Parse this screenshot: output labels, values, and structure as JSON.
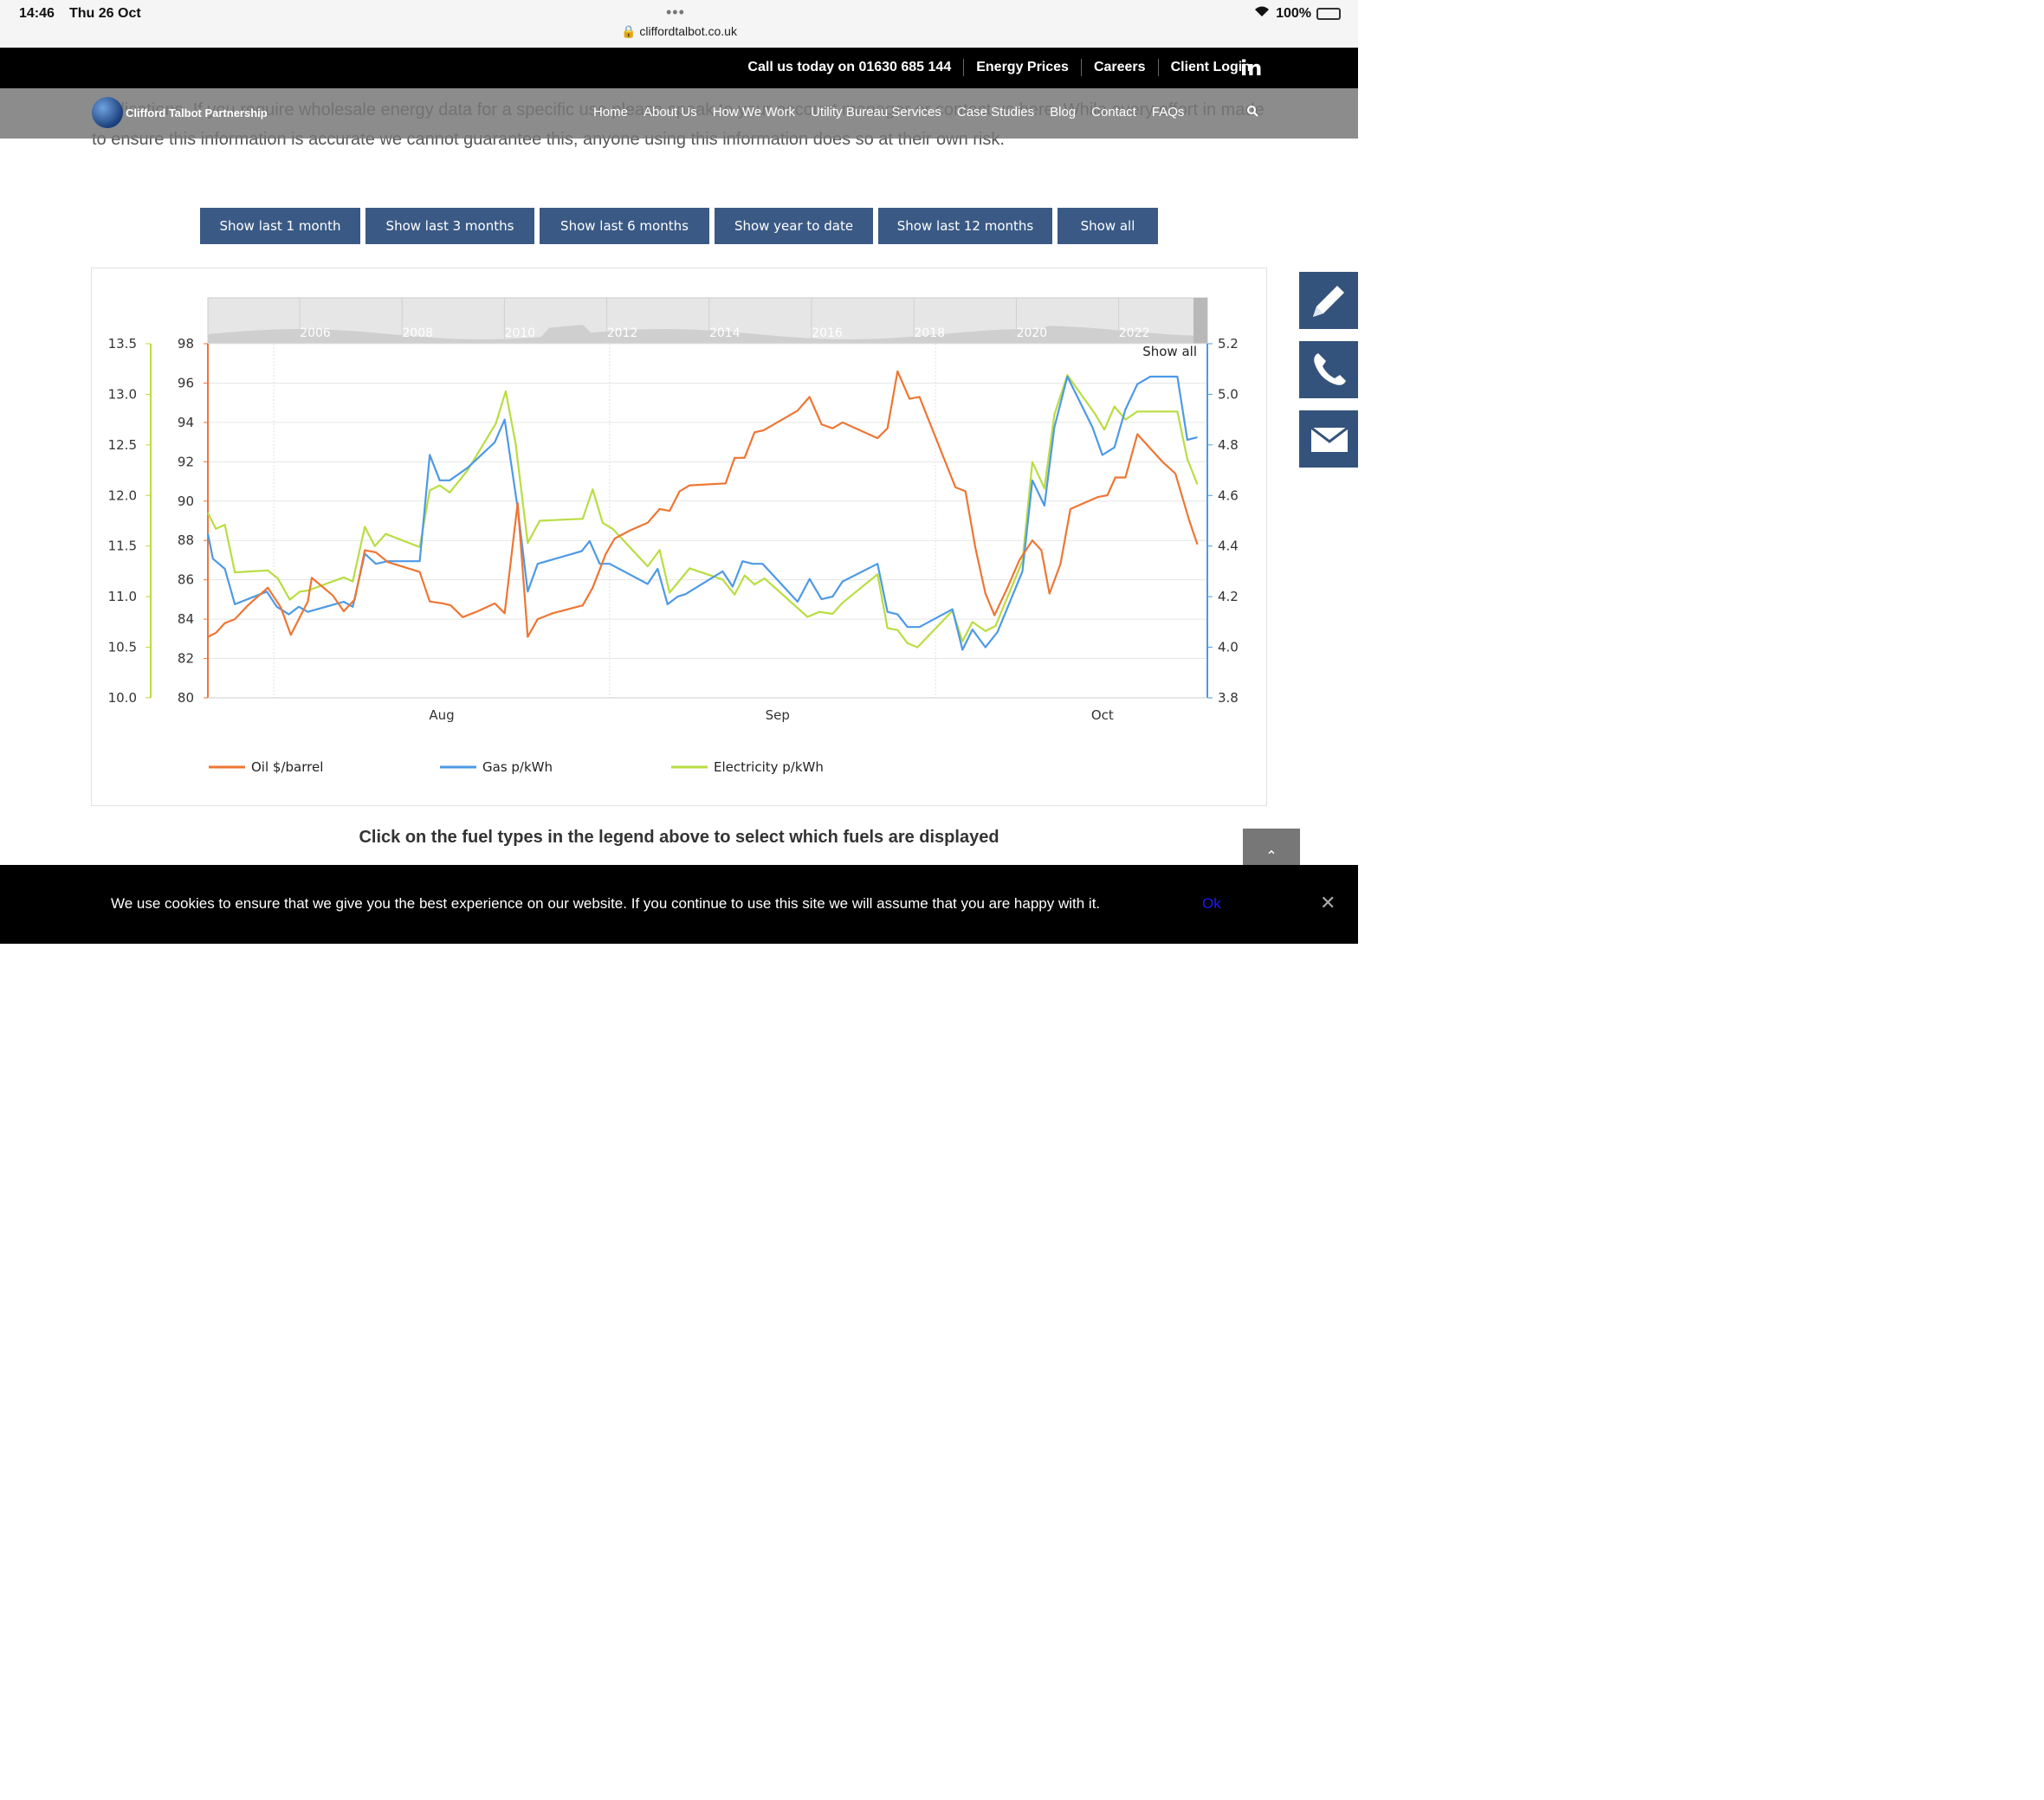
{
  "status": {
    "time": "14:46",
    "date": "Thu 26 Oct",
    "url": "cliffordtalbot.co.uk",
    "battery": "100%"
  },
  "topbar": {
    "links": [
      "Call us today on 01630 685 144",
      "Energy Prices",
      "Careers",
      "Client Login"
    ]
  },
  "nav": {
    "brand": "Clifford Talbot Partnership",
    "links": [
      "Home",
      "About Us",
      "How We Work",
      "Utility Bureau Services",
      "Case Studies",
      "Blog",
      "Contact",
      "FAQs"
    ]
  },
  "intro": {
    "text": "applications. If you require wholesale energy data for a specific use please speak to your account manager or contact us here. While every effort in made to ensure this information is accurate we cannot guarantee this, anyone using this information does so at their own risk."
  },
  "ranges": [
    "Show last 1 month",
    "Show last 3 months",
    "Show last 6 months",
    "Show year to date",
    "Show last 12 months",
    "Show all"
  ],
  "instructions": "Click on the fuel types in the legend above to select which fuels are displayed",
  "cookie": {
    "text": "We use cookies to ensure that we give you the best experience on our website. If you continue to use this site we will assume that you are happy with it.",
    "ok": "Ok"
  },
  "colors": {
    "oil": "#ee7633",
    "gas": "#4d99e6",
    "elec": "#b9dd41"
  },
  "chart_data": {
    "type": "line",
    "navigator_years": [
      "2006",
      "2008",
      "2010",
      "2012",
      "2014",
      "2016",
      "2018",
      "2020",
      "2022"
    ],
    "navigator_label": "Show all",
    "x_months": [
      {
        "label": "Aug",
        "pos": 0.234
      },
      {
        "label": "Sep",
        "pos": 0.57
      },
      {
        "label": "Oct",
        "pos": 0.895
      }
    ],
    "gridline_months": [
      0.066,
      0.402,
      0.728
    ],
    "axes": {
      "oil": {
        "min": 80,
        "max": 98,
        "ticks": [
          98,
          96,
          94,
          92,
          90,
          88,
          86,
          84,
          82,
          80
        ]
      },
      "elec": {
        "min": 10.0,
        "max": 13.5,
        "ticks": [
          "13.5",
          "13.0",
          "12.5",
          "12.0",
          "11.5",
          "11.0",
          "10.5",
          "10.0"
        ]
      },
      "gas": {
        "min": 3.8,
        "max": 5.2,
        "ticks": [
          "5.2",
          "5.0",
          "4.8",
          "4.6",
          "4.4",
          "4.2",
          "4.0",
          "3.8"
        ]
      }
    },
    "series": [
      {
        "name": "Oil $/barrel",
        "key": "oil",
        "points": [
          [
            0.0,
            83.1
          ],
          [
            0.008,
            83.3
          ],
          [
            0.017,
            83.8
          ],
          [
            0.027,
            84.0
          ],
          [
            0.04,
            84.7
          ],
          [
            0.06,
            85.6
          ],
          [
            0.073,
            84.6
          ],
          [
            0.083,
            83.2
          ],
          [
            0.1,
            84.9
          ],
          [
            0.104,
            86.1
          ],
          [
            0.125,
            85.2
          ],
          [
            0.136,
            84.4
          ],
          [
            0.147,
            85.0
          ],
          [
            0.157,
            87.5
          ],
          [
            0.168,
            87.4
          ],
          [
            0.18,
            86.9
          ],
          [
            0.212,
            86.4
          ],
          [
            0.222,
            84.9
          ],
          [
            0.235,
            84.8
          ],
          [
            0.243,
            84.7
          ],
          [
            0.255,
            84.1
          ],
          [
            0.27,
            84.4
          ],
          [
            0.287,
            84.8
          ],
          [
            0.297,
            84.3
          ],
          [
            0.31,
            89.9
          ],
          [
            0.32,
            83.1
          ],
          [
            0.33,
            84.0
          ],
          [
            0.345,
            84.3
          ],
          [
            0.375,
            84.7
          ],
          [
            0.385,
            85.6
          ],
          [
            0.398,
            87.3
          ],
          [
            0.407,
            88.1
          ],
          [
            0.422,
            88.5
          ],
          [
            0.44,
            88.9
          ],
          [
            0.452,
            89.6
          ],
          [
            0.462,
            89.5
          ],
          [
            0.472,
            90.5
          ],
          [
            0.482,
            90.8
          ],
          [
            0.518,
            90.9
          ],
          [
            0.527,
            92.2
          ],
          [
            0.537,
            92.2
          ],
          [
            0.547,
            93.5
          ],
          [
            0.556,
            93.6
          ],
          [
            0.59,
            94.6
          ],
          [
            0.602,
            95.3
          ],
          [
            0.614,
            93.9
          ],
          [
            0.625,
            93.7
          ],
          [
            0.635,
            94.0
          ],
          [
            0.67,
            93.2
          ],
          [
            0.68,
            93.7
          ],
          [
            0.69,
            96.6
          ],
          [
            0.702,
            95.2
          ],
          [
            0.712,
            95.3
          ],
          [
            0.748,
            90.7
          ],
          [
            0.758,
            90.5
          ],
          [
            0.768,
            87.6
          ],
          [
            0.778,
            85.3
          ],
          [
            0.787,
            84.2
          ],
          [
            0.8,
            85.6
          ],
          [
            0.812,
            87.0
          ],
          [
            0.825,
            88.0
          ],
          [
            0.834,
            87.5
          ],
          [
            0.842,
            85.3
          ],
          [
            0.853,
            86.8
          ],
          [
            0.863,
            89.6
          ],
          [
            0.89,
            90.2
          ],
          [
            0.9,
            90.3
          ],
          [
            0.908,
            91.2
          ],
          [
            0.918,
            91.2
          ],
          [
            0.93,
            93.4
          ],
          [
            0.955,
            92.0
          ],
          [
            0.968,
            91.4
          ],
          [
            0.982,
            89.0
          ],
          [
            0.99,
            87.8
          ]
        ]
      },
      {
        "name": "Gas p/kWh",
        "key": "gas",
        "points": [
          [
            0.0,
            4.45
          ],
          [
            0.005,
            4.35
          ],
          [
            0.017,
            4.31
          ],
          [
            0.027,
            4.17
          ],
          [
            0.059,
            4.22
          ],
          [
            0.069,
            4.16
          ],
          [
            0.081,
            4.13
          ],
          [
            0.091,
            4.16
          ],
          [
            0.1,
            4.14
          ],
          [
            0.136,
            4.18
          ],
          [
            0.145,
            4.16
          ],
          [
            0.157,
            4.37
          ],
          [
            0.168,
            4.33
          ],
          [
            0.18,
            4.34
          ],
          [
            0.212,
            4.34
          ],
          [
            0.222,
            4.76
          ],
          [
            0.232,
            4.66
          ],
          [
            0.242,
            4.66
          ],
          [
            0.26,
            4.71
          ],
          [
            0.287,
            4.81
          ],
          [
            0.297,
            4.9
          ],
          [
            0.31,
            4.55
          ],
          [
            0.32,
            4.22
          ],
          [
            0.33,
            4.33
          ],
          [
            0.374,
            4.38
          ],
          [
            0.382,
            4.42
          ],
          [
            0.392,
            4.33
          ],
          [
            0.402,
            4.33
          ],
          [
            0.44,
            4.25
          ],
          [
            0.45,
            4.31
          ],
          [
            0.46,
            4.17
          ],
          [
            0.47,
            4.2
          ],
          [
            0.478,
            4.21
          ],
          [
            0.515,
            4.3
          ],
          [
            0.525,
            4.24
          ],
          [
            0.535,
            4.34
          ],
          [
            0.545,
            4.33
          ],
          [
            0.555,
            4.33
          ],
          [
            0.59,
            4.18
          ],
          [
            0.602,
            4.27
          ],
          [
            0.614,
            4.19
          ],
          [
            0.625,
            4.2
          ],
          [
            0.635,
            4.26
          ],
          [
            0.67,
            4.33
          ],
          [
            0.68,
            4.14
          ],
          [
            0.69,
            4.13
          ],
          [
            0.7,
            4.08
          ],
          [
            0.712,
            4.08
          ],
          [
            0.745,
            4.15
          ],
          [
            0.755,
            3.99
          ],
          [
            0.765,
            4.07
          ],
          [
            0.778,
            4.0
          ],
          [
            0.79,
            4.06
          ],
          [
            0.815,
            4.3
          ],
          [
            0.825,
            4.66
          ],
          [
            0.837,
            4.56
          ],
          [
            0.847,
            4.87
          ],
          [
            0.86,
            5.07
          ],
          [
            0.885,
            4.87
          ],
          [
            0.895,
            4.76
          ],
          [
            0.907,
            4.79
          ],
          [
            0.918,
            4.94
          ],
          [
            0.93,
            5.04
          ],
          [
            0.943,
            5.07
          ],
          [
            0.97,
            5.07
          ],
          [
            0.98,
            4.82
          ],
          [
            0.99,
            4.83
          ]
        ]
      },
      {
        "name": "Electricity p/kWh",
        "key": "elec",
        "points": [
          [
            0.0,
            11.83
          ],
          [
            0.008,
            11.67
          ],
          [
            0.017,
            11.71
          ],
          [
            0.027,
            11.24
          ],
          [
            0.06,
            11.26
          ],
          [
            0.07,
            11.18
          ],
          [
            0.082,
            10.97
          ],
          [
            0.092,
            11.05
          ],
          [
            0.1,
            11.06
          ],
          [
            0.136,
            11.19
          ],
          [
            0.145,
            11.15
          ],
          [
            0.157,
            11.69
          ],
          [
            0.167,
            11.5
          ],
          [
            0.178,
            11.62
          ],
          [
            0.212,
            11.49
          ],
          [
            0.222,
            12.05
          ],
          [
            0.232,
            12.1
          ],
          [
            0.242,
            12.03
          ],
          [
            0.26,
            12.25
          ],
          [
            0.288,
            12.71
          ],
          [
            0.298,
            13.03
          ],
          [
            0.308,
            12.51
          ],
          [
            0.32,
            11.53
          ],
          [
            0.332,
            11.75
          ],
          [
            0.375,
            11.77
          ],
          [
            0.385,
            12.06
          ],
          [
            0.395,
            11.73
          ],
          [
            0.405,
            11.67
          ],
          [
            0.44,
            11.3
          ],
          [
            0.452,
            11.46
          ],
          [
            0.462,
            11.04
          ],
          [
            0.482,
            11.28
          ],
          [
            0.515,
            11.17
          ],
          [
            0.527,
            11.02
          ],
          [
            0.537,
            11.21
          ],
          [
            0.547,
            11.12
          ],
          [
            0.557,
            11.18
          ],
          [
            0.6,
            10.8
          ],
          [
            0.612,
            10.85
          ],
          [
            0.625,
            10.83
          ],
          [
            0.635,
            10.94
          ],
          [
            0.67,
            11.22
          ],
          [
            0.68,
            10.69
          ],
          [
            0.69,
            10.67
          ],
          [
            0.7,
            10.54
          ],
          [
            0.71,
            10.5
          ],
          [
            0.745,
            10.86
          ],
          [
            0.755,
            10.56
          ],
          [
            0.765,
            10.75
          ],
          [
            0.778,
            10.66
          ],
          [
            0.788,
            10.71
          ],
          [
            0.815,
            11.35
          ],
          [
            0.825,
            12.33
          ],
          [
            0.837,
            12.07
          ],
          [
            0.847,
            12.8
          ],
          [
            0.86,
            13.19
          ],
          [
            0.888,
            12.8
          ],
          [
            0.897,
            12.65
          ],
          [
            0.907,
            12.88
          ],
          [
            0.918,
            12.75
          ],
          [
            0.93,
            12.83
          ],
          [
            0.943,
            12.83
          ],
          [
            0.97,
            12.83
          ],
          [
            0.98,
            12.36
          ],
          [
            0.99,
            12.11
          ]
        ]
      }
    ],
    "legend": [
      {
        "key": "oil",
        "label": "Oil $/barrel"
      },
      {
        "key": "gas",
        "label": "Gas p/kWh"
      },
      {
        "key": "elec",
        "label": "Electricity p/kWh"
      }
    ]
  }
}
